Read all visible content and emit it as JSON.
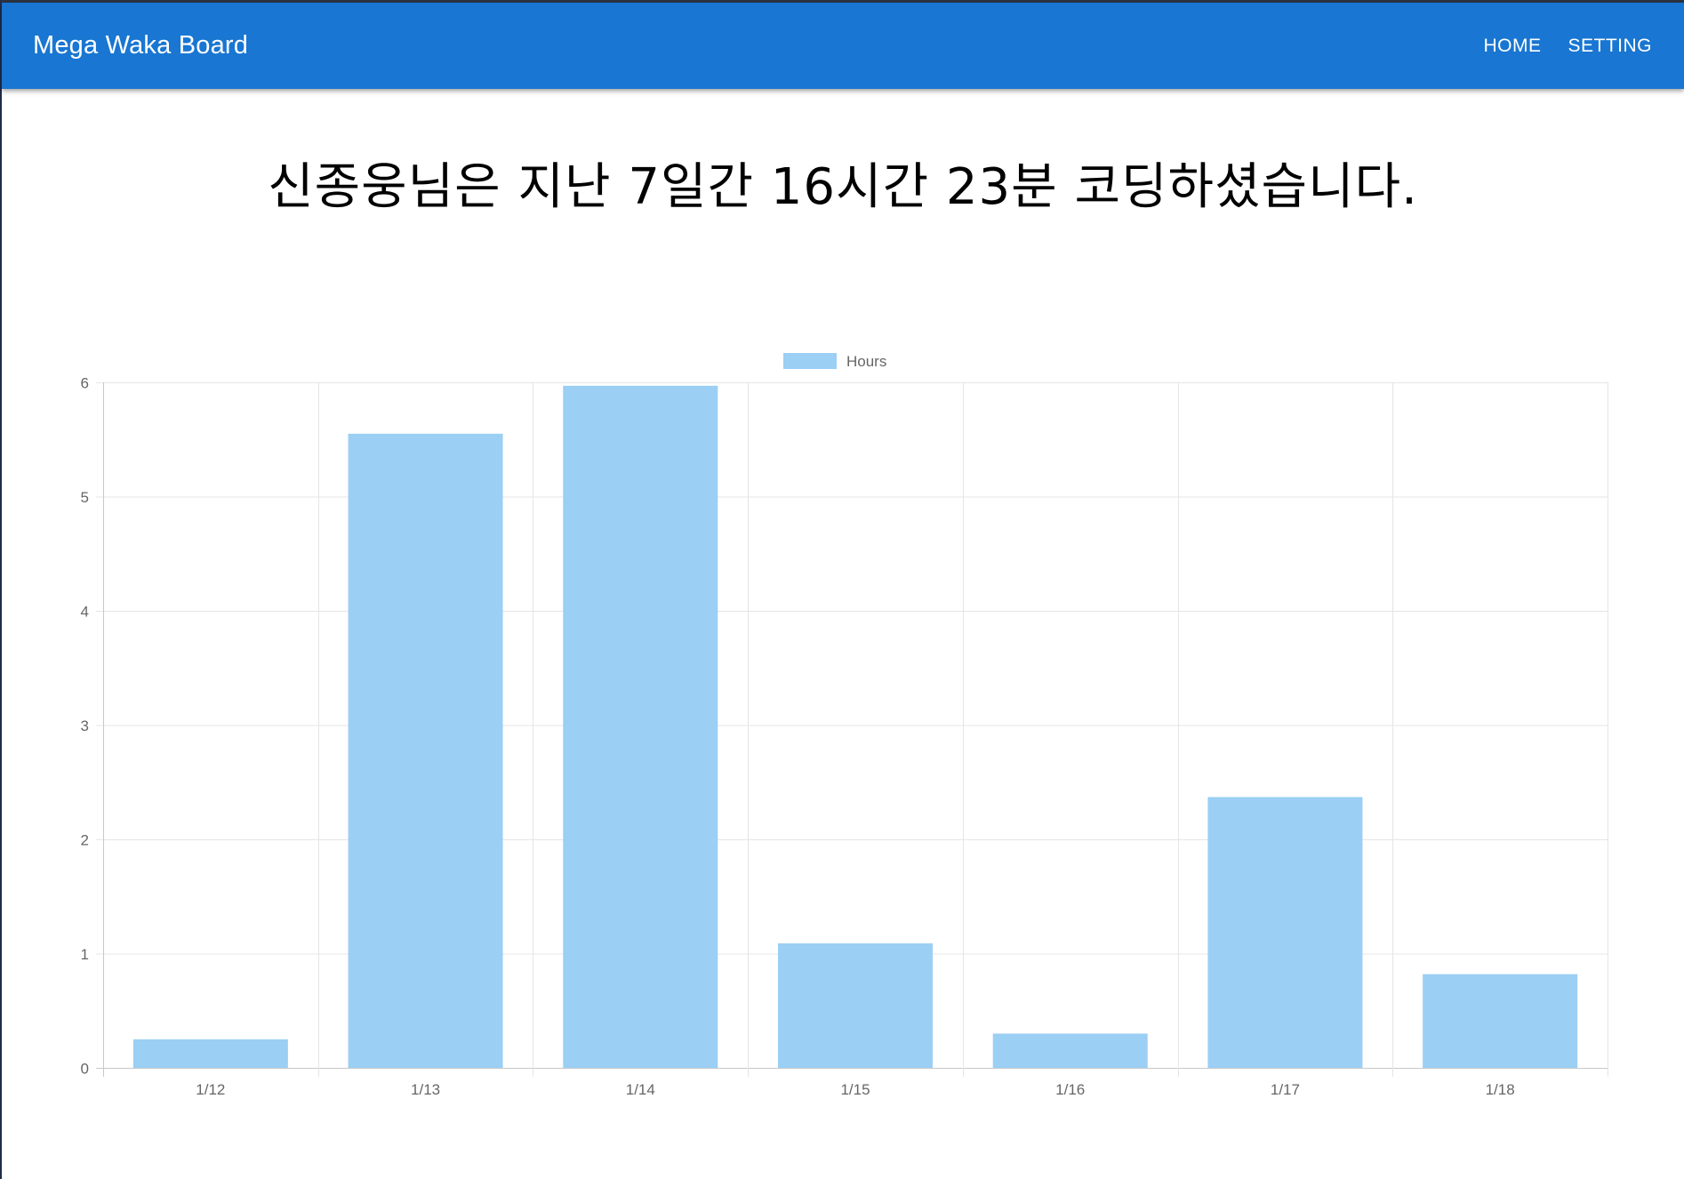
{
  "appbar": {
    "brand": "Mega Waka Board",
    "nav": [
      {
        "label": "HOME"
      },
      {
        "label": "SETTING"
      }
    ],
    "color": "#1976d2"
  },
  "summary": {
    "text": "신종웅님은 지난 7일간 16시간 23분 코딩하셨습니다."
  },
  "chart_data": {
    "type": "bar",
    "categories": [
      "1/12",
      "1/13",
      "1/14",
      "1/15",
      "1/16",
      "1/17",
      "1/18"
    ],
    "series": [
      {
        "name": "Hours",
        "values": [
          0.25,
          5.55,
          5.97,
          1.09,
          0.3,
          2.37,
          0.82
        ],
        "color": "#9bcff4"
      }
    ],
    "ylim": [
      0,
      6
    ],
    "yticks": [
      "0",
      "1",
      "2",
      "3",
      "4",
      "5",
      "6"
    ],
    "grid": true,
    "legend": "top-center"
  }
}
